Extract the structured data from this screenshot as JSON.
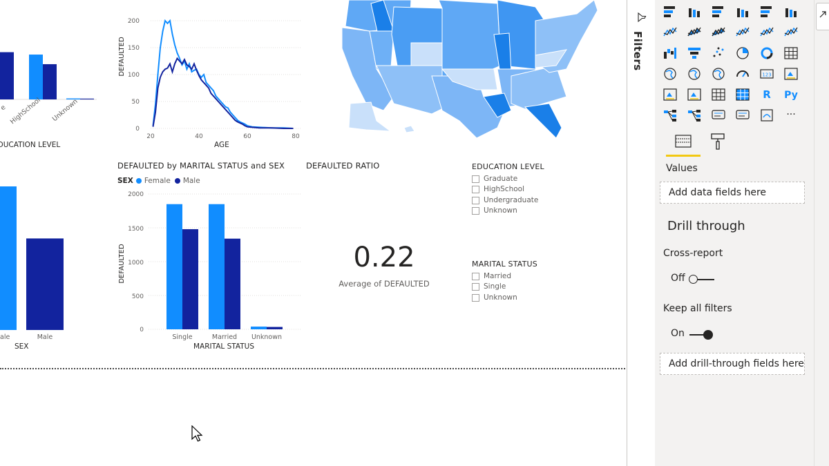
{
  "charts": {
    "education": {
      "axis_title": "EDUCATION LEVEL",
      "tick_labels": [
        "Graduate",
        "HighSchool",
        "Unknown"
      ],
      "tick_labels_visible": [
        "e",
        "HighSchool",
        "Unknown"
      ]
    },
    "age": {
      "ylabel": "DEFAULTED",
      "xlabel": "AGE",
      "y_ticks": [
        "0",
        "50",
        "100",
        "150",
        "200"
      ],
      "x_ticks": [
        "20",
        "40",
        "60",
        "80"
      ]
    },
    "sex": {
      "axis_title": "SEX",
      "tick_labels": [
        "Female",
        "Male"
      ],
      "tick_labels_visible": [
        "ale",
        "Male"
      ]
    },
    "marital": {
      "title": "DEFAULTED by MARITAL STATUS and SEX",
      "legend_title": "SEX",
      "ylabel": "DEFAULTED",
      "xlabel": "MARITAL STATUS",
      "y_ticks": [
        "0",
        "500",
        "1000",
        "1500",
        "2000"
      ]
    }
  },
  "card": {
    "title": "DEFAULTED RATIO",
    "value": "0.22",
    "label": "Average of DEFAULTED"
  },
  "slicers": {
    "education": {
      "title": "EDUCATION LEVEL",
      "items": [
        "Graduate",
        "HighSchool",
        "Undergraduate",
        "Unknown"
      ]
    },
    "marital": {
      "title": "MARITAL STATUS",
      "items": [
        "Married",
        "Single",
        "Unknown"
      ]
    }
  },
  "filters_pane": {
    "label": "Filters"
  },
  "viz_pane": {
    "values_label": "Values",
    "values_well": "Add data fields here",
    "drill_title": "Drill through",
    "cross_report_label": "Cross-report",
    "cross_report_state": "Off",
    "keep_filters_label": "Keep all filters",
    "keep_filters_state": "On",
    "drill_well": "Add drill-through fields here",
    "viz_icons": [
      "stacked-bar-chart-icon",
      "stacked-column-chart-icon",
      "clustered-bar-chart-icon",
      "clustered-column-chart-icon",
      "100-stacked-bar-chart-icon",
      "100-stacked-column-chart-icon",
      "line-chart-icon",
      "area-chart-icon",
      "stacked-area-chart-icon",
      "line-clustered-column-chart-icon",
      "line-stacked-column-chart-icon",
      "ribbon-chart-icon",
      "waterfall-chart-icon",
      "funnel-chart-icon",
      "scatter-chart-icon",
      "pie-chart-icon",
      "donut-chart-icon",
      "treemap-icon",
      "map-icon",
      "filled-map-icon",
      "shape-map-icon",
      "gauge-icon",
      "card-icon",
      "multi-row-card-icon",
      "kpi-icon",
      "slicer-icon",
      "table-icon",
      "matrix-icon",
      "r-visual-icon",
      "python-visual-icon",
      "key-influencers-icon",
      "decomposition-tree-icon",
      "qa-icon",
      "smart-narrative-icon",
      "paginated-report-icon",
      "more-visuals-icon"
    ],
    "fields_tab": "fields-tab-icon",
    "format_tab": "format-paint-roller-icon"
  },
  "colors": {
    "female": "#118DFF",
    "male": "#12239E",
    "accent_underline": "#F2C811"
  },
  "chart_data": [
    {
      "type": "bar",
      "categories": [
        "Graduate",
        "HighSchool",
        "Unknown"
      ],
      "series": [
        {
          "name": "Female",
          "values": [
            1490,
            1120,
            25
          ]
        },
        {
          "name": "Male",
          "values": [
            1180,
            880,
            20
          ]
        }
      ],
      "xlabel": "EDUCATION LEVEL"
    },
    {
      "type": "line",
      "xlabel": "AGE",
      "ylabel": "DEFAULTED",
      "xlim": [
        20,
        80
      ],
      "ylim": [
        0,
        200
      ],
      "x": [
        21,
        22,
        23,
        24,
        25,
        26,
        27,
        28,
        29,
        30,
        31,
        32,
        33,
        34,
        35,
        36,
        37,
        38,
        39,
        40,
        41,
        42,
        43,
        44,
        45,
        46,
        47,
        48,
        49,
        50,
        51,
        52,
        53,
        54,
        55,
        56,
        57,
        58,
        59,
        60,
        62,
        65,
        70,
        75,
        79
      ],
      "series": [
        {
          "name": "Female",
          "values": [
            5,
            45,
            100,
            150,
            180,
            200,
            195,
            200,
            175,
            155,
            140,
            130,
            118,
            125,
            110,
            120,
            105,
            108,
            110,
            100,
            95,
            100,
            85,
            80,
            75,
            70,
            60,
            55,
            50,
            45,
            40,
            38,
            30,
            25,
            20,
            15,
            12,
            10,
            8,
            5,
            3,
            2,
            1,
            1,
            0
          ]
        },
        {
          "name": "Male",
          "values": [
            3,
            30,
            75,
            95,
            105,
            110,
            112,
            120,
            105,
            120,
            130,
            125,
            120,
            128,
            118,
            115,
            110,
            120,
            108,
            98,
            90,
            85,
            80,
            75,
            65,
            60,
            55,
            50,
            45,
            40,
            35,
            30,
            25,
            20,
            15,
            12,
            10,
            8,
            5,
            3,
            2,
            1,
            1,
            0,
            0
          ]
        }
      ]
    },
    {
      "type": "bar",
      "categories": [
        "Female",
        "Male"
      ],
      "values": [
        4000,
        2550
      ],
      "xlabel": "SEX"
    },
    {
      "type": "bar",
      "title": "DEFAULTED by MARITAL STATUS and SEX",
      "categories": [
        "Single",
        "Married",
        "Unknown"
      ],
      "series": [
        {
          "name": "Female",
          "values": [
            1850,
            1850,
            40
          ]
        },
        {
          "name": "Male",
          "values": [
            1480,
            1340,
            35
          ]
        }
      ],
      "xlabel": "MARITAL STATUS",
      "ylabel": "DEFAULTED",
      "ylim": [
        0,
        2000
      ]
    },
    {
      "type": "map",
      "title": "",
      "note": "filled map of United States shaded by value"
    }
  ]
}
